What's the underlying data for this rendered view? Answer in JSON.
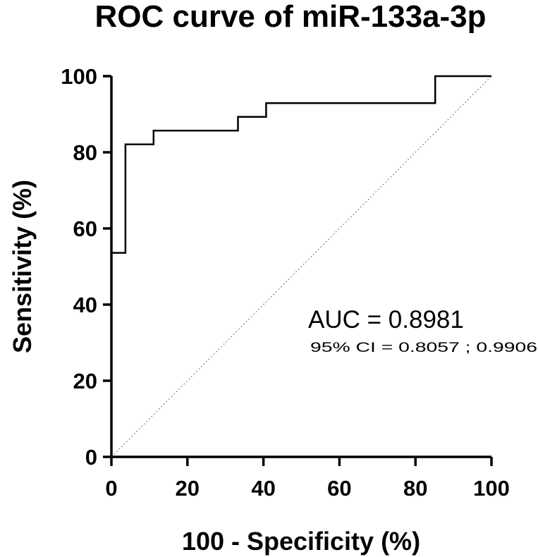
{
  "chart_data": {
    "type": "line",
    "title": "ROC curve of miR-133a-3p",
    "xlabel": "100 - Specificity (%)",
    "ylabel": "Sensitivity (%)",
    "xlim": [
      0,
      100
    ],
    "ylim": [
      0,
      100
    ],
    "x_ticks": [
      "0",
      "20",
      "40",
      "60",
      "80",
      "100"
    ],
    "y_ticks": [
      "0",
      "20",
      "40",
      "60",
      "80",
      "100"
    ],
    "grid": false,
    "legend": "none",
    "series": [
      {
        "style": "step",
        "color": "#000000",
        "x": [
          0,
          0,
          3.7,
          3.7,
          11.1,
          11.1,
          33.3,
          33.3,
          40.7,
          40.7,
          85.2,
          85.2,
          100
        ],
        "y": [
          0,
          53.6,
          53.6,
          82.1,
          82.1,
          85.7,
          85.7,
          89.3,
          89.3,
          92.9,
          92.9,
          100,
          100
        ]
      }
    ],
    "reference_line": {
      "x": [
        0,
        100
      ],
      "y": [
        0,
        100
      ],
      "color": "#9a9a9a",
      "style": "dotted"
    },
    "annotations": {
      "auc": "AUC = 0.8981",
      "ci": "95% CI = 0.8057 ; 0.9906"
    }
  }
}
